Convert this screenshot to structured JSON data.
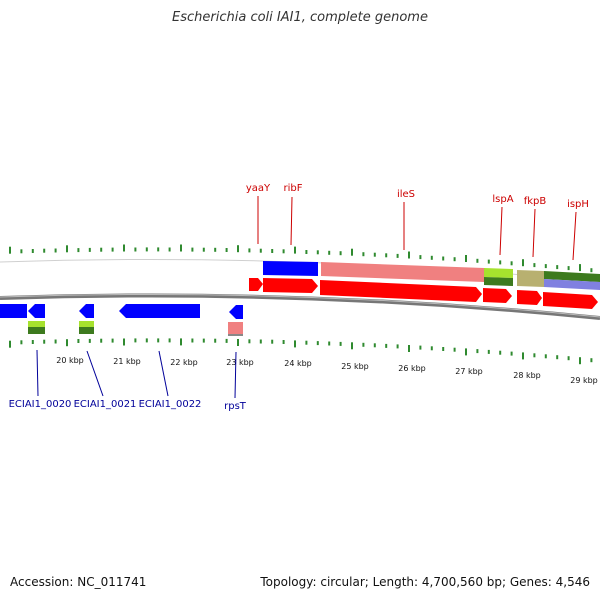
{
  "title": "Escherichia coli IAI1, complete genome",
  "footer": {
    "accession": "Accession: NC_011741",
    "summary": "Topology: circular; Length: 4,700,560 bp; Genes: 4,546"
  },
  "colors": {
    "tick": "#2f8a2f",
    "backbone": "#888888",
    "red_gene": "#ff0000",
    "pink_gene": "#f08080",
    "blue_gene": "#0000ff",
    "lime_gene": "#a6e22e",
    "olive_gene": "#b8b070",
    "darkgreen_gene": "#3d7a1e",
    "purple_gene": "#8080e0",
    "label_red": "#cc0000",
    "label_blue": "#000099"
  },
  "scale_labels": [
    "20 kbp",
    "21 kbp",
    "22 kbp",
    "23 kbp",
    "24 kbp",
    "25 kbp",
    "26 kbp",
    "27 kbp",
    "28 kbp",
    "29 kbp"
  ],
  "gene_labels_top": [
    {
      "name": "yaaY"
    },
    {
      "name": "ribF"
    },
    {
      "name": "ileS"
    },
    {
      "name": "lspA"
    },
    {
      "name": "fkpB"
    },
    {
      "name": "ispH"
    }
  ],
  "gene_labels_bottom": [
    {
      "name": "ECIAI1_0020"
    },
    {
      "name": "ECIAI1_0021"
    },
    {
      "name": "ECIAI1_0022"
    },
    {
      "name": "rpsT"
    }
  ]
}
